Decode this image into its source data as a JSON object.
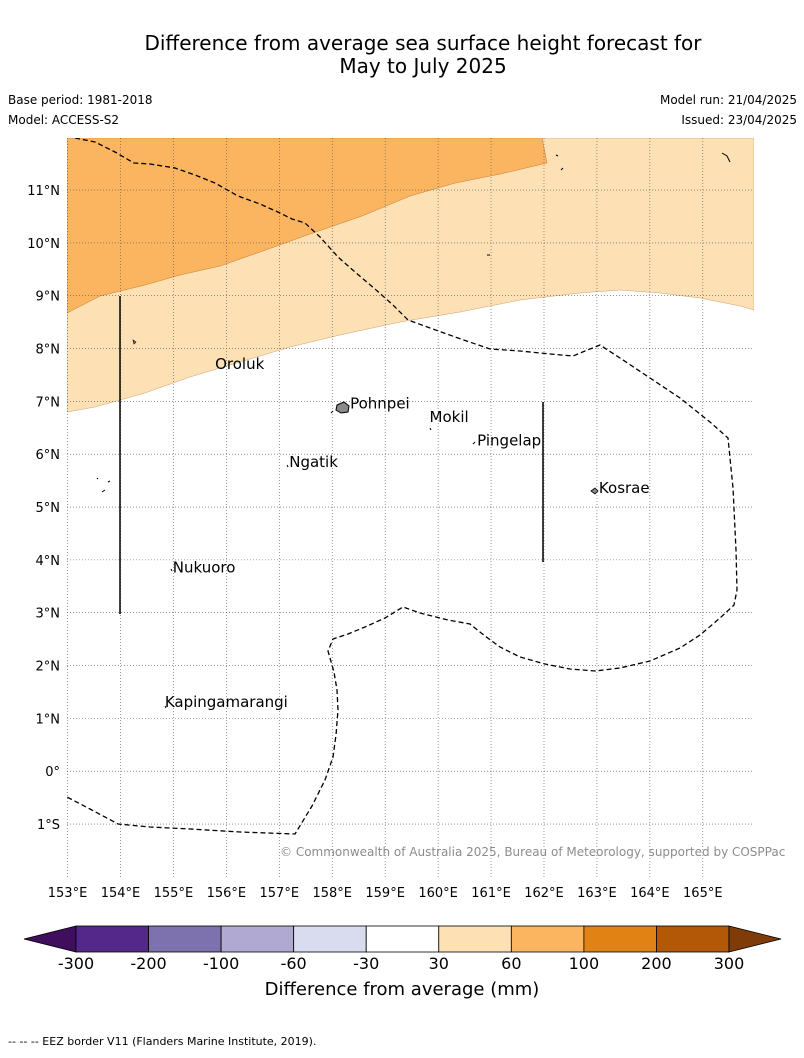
{
  "title_line1": "Difference from average sea surface height forecast for",
  "title_line2": "May to July 2025",
  "base_period": "Base period: 1981-2018",
  "model": "Model: ACCESS-S2",
  "model_run": "Model run: 21/04/2025",
  "issued": "Issued: 23/04/2025",
  "copyright": "© Commonwealth of Australia 2025, Bureau of Meteorology, supported by COSPPac",
  "footer": "--  --  -- EEZ border V11 (Flanders Marine Institute, 2019).",
  "map": {
    "lon_ticks": [
      "153°E",
      "154°E",
      "155°E",
      "156°E",
      "157°E",
      "158°E",
      "159°E",
      "160°E",
      "161°E",
      "162°E",
      "163°E",
      "164°E",
      "165°E"
    ],
    "lat_ticks": [
      "11°N",
      "10°N",
      "9°N",
      "8°N",
      "7°N",
      "6°N",
      "5°N",
      "4°N",
      "3°N",
      "2°N",
      "1°N",
      "0°",
      "1°S"
    ],
    "places": [
      {
        "name": "Oroluk",
        "lon": 155.75,
        "lat": 7.65
      },
      {
        "name": "Pohnpei",
        "lon": 158.3,
        "lat": 6.9
      },
      {
        "name": "Mokil",
        "lon": 159.8,
        "lat": 6.65
      },
      {
        "name": "Pingelap",
        "lon": 160.7,
        "lat": 6.2
      },
      {
        "name": "Ngatik",
        "lon": 157.15,
        "lat": 5.8
      },
      {
        "name": "Kosrae",
        "lon": 163.0,
        "lat": 5.3
      },
      {
        "name": "Nukuoro",
        "lon": 154.95,
        "lat": 3.8
      },
      {
        "name": "Kapingamarangi",
        "lon": 154.8,
        "lat": 1.25
      }
    ],
    "colors": {
      "light_orange": "#fde0b4",
      "mid_orange": "#fbb560"
    }
  },
  "colorbar": {
    "label": "Difference from average (mm)",
    "ticks": [
      "-300",
      "-200",
      "-100",
      "-60",
      "-30",
      "30",
      "60",
      "100",
      "200",
      "300"
    ],
    "colors": [
      "#3f0f5e",
      "#54288a",
      "#7e72ae",
      "#b0a9d1",
      "#d9dbee",
      "#ffffff",
      "#fde0b4",
      "#fbb560",
      "#e08214",
      "#b35806",
      "#7f3b08"
    ]
  }
}
